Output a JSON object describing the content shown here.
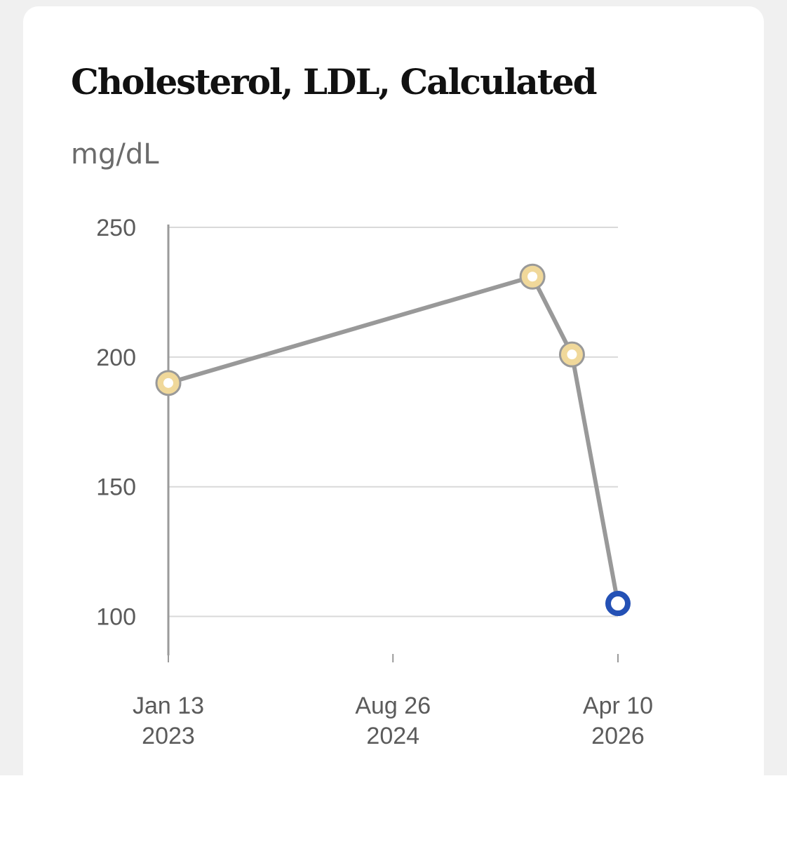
{
  "title": "Cholesterol, LDL, Calculated",
  "unit": "mg/dL",
  "chart_data": {
    "type": "line",
    "title": "Cholesterol, LDL, Calculated",
    "ylabel": "mg/dL",
    "xlabel": "",
    "ylim": [
      85,
      250
    ],
    "yticks": [
      100,
      150,
      200,
      250
    ],
    "xlim": [
      "2023-01-13",
      "2026-04-10"
    ],
    "xticks": [
      {
        "date": "2023-01-13",
        "line1": "Jan 13",
        "line2": "2023"
      },
      {
        "date": "2024-08-26",
        "line1": "Aug 26",
        "line2": "2024"
      },
      {
        "date": "2026-04-10",
        "line1": "Apr 10",
        "line2": "2026"
      }
    ],
    "grid": true,
    "points": [
      {
        "date": "2023-01-13",
        "value": 190,
        "status": "flagged"
      },
      {
        "date": "2025-08-28",
        "value": 231,
        "status": "flagged"
      },
      {
        "date": "2025-12-10",
        "value": 201,
        "status": "flagged"
      },
      {
        "date": "2026-04-10",
        "value": 105,
        "status": "latest"
      }
    ],
    "colors": {
      "line": "#999999",
      "flagged_fill": "#f0d89a",
      "flagged_stroke": "#999999",
      "latest_stroke": "#2451b5",
      "grid": "#d9d9d9",
      "axis": "#9a9a9a"
    }
  }
}
